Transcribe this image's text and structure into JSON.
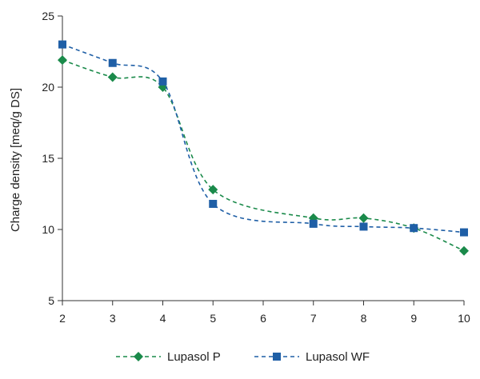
{
  "chart_data": {
    "type": "line",
    "title": "",
    "xlabel": "",
    "ylabel": "Charge density [meq/g DS]",
    "x": [
      2,
      3,
      4,
      5,
      7,
      8,
      9,
      10
    ],
    "xticks": [
      "2",
      "3",
      "4",
      "5",
      "6",
      "7",
      "8",
      "9",
      "10"
    ],
    "yticks": [
      "5",
      "10",
      "15",
      "20",
      "25"
    ],
    "xlim": [
      2,
      10
    ],
    "ylim": [
      5,
      25
    ],
    "grid": false,
    "legend_position": "bottom",
    "series": [
      {
        "name": "Lupasol P",
        "color": "#1a8a4a",
        "marker": "diamond",
        "line_style": "dashed",
        "values": [
          21.9,
          20.7,
          20.0,
          12.8,
          10.8,
          10.8,
          10.1,
          8.5
        ]
      },
      {
        "name": "Lupasol WF",
        "color": "#1f5fa6",
        "marker": "square",
        "line_style": "dashed",
        "values": [
          23.0,
          21.7,
          20.4,
          11.8,
          10.4,
          10.2,
          10.1,
          9.8
        ]
      }
    ]
  }
}
